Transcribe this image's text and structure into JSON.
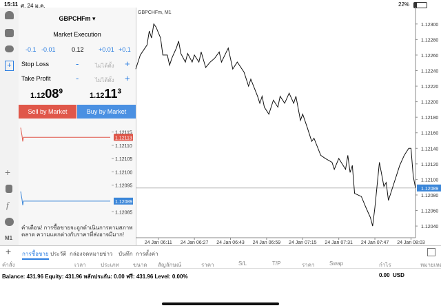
{
  "status_bar": {
    "time": "15:11",
    "date": "ศ. 24 ม.ค.",
    "battery": "22%"
  },
  "sidebar": {
    "left_menu_label": "M1"
  },
  "order_panel": {
    "symbol": "GBPCHFm",
    "execution": "Market Execution",
    "volume_controls": [
      "-0.1",
      "-0.01",
      "0.12",
      "+0.01",
      "+0.1"
    ],
    "stop_loss": {
      "label": "Stop Loss",
      "minus": "-",
      "value": "ไม่ได้ตั้ง",
      "plus": "+"
    },
    "take_profit": {
      "label": "Take Profit",
      "minus": "-",
      "value": "ไม่ได้ตั้ง",
      "plus": "+"
    },
    "bid": {
      "prefix": "1.12",
      "big": "08",
      "pip": "9"
    },
    "ask": {
      "prefix": "1.12",
      "big": "11",
      "pip": "3"
    },
    "sell_button": "Sell by Market",
    "buy_button": "Buy by Market",
    "warning": "คำเตือน! การซื้อขายจะถูกดำเนินการตามสภาพตลาด ความแตกต่างกับราคาที่ส่งอาจมีมาก!"
  },
  "mini_chart": {
    "ylim": [
      1.12083,
      1.12118
    ],
    "yticks": [
      {
        "value": 1.12115,
        "label": "1.12115"
      },
      {
        "value": 1.1211,
        "label": "1.12110"
      },
      {
        "value": 1.12105,
        "label": "1.12105"
      },
      {
        "value": 1.121,
        "label": "1.12100"
      },
      {
        "value": 1.12095,
        "label": "1.12095"
      },
      {
        "value": 1.12085,
        "label": "1.12085"
      }
    ],
    "ask": {
      "value": 1.12113,
      "label": "1.12113",
      "color": "#e0574a"
    },
    "bid": {
      "value": 1.12089,
      "label": "1.12089",
      "color": "#3b86d8"
    }
  },
  "chart": {
    "type": "line",
    "title": "GBPCHFm, M1",
    "color": "#111111",
    "x": [
      1,
      3,
      6,
      7,
      8,
      9,
      10,
      12,
      13,
      15,
      16,
      17,
      19,
      20,
      21,
      23,
      24,
      26,
      27,
      29,
      30,
      32,
      34,
      36,
      38,
      39,
      42,
      44,
      46,
      49,
      51,
      52,
      55,
      56,
      57,
      58,
      60,
      62,
      64,
      65,
      67,
      69,
      71,
      72,
      74,
      75,
      77,
      79,
      80,
      83,
      85,
      88,
      89,
      91,
      94,
      95,
      96,
      97,
      98,
      101,
      103,
      105,
      106,
      107,
      109,
      111,
      112,
      113,
      116,
      118,
      120,
      122,
      123,
      124,
      125
    ],
    "values": [
      1.12242,
      1.1226,
      1.12273,
      1.12291,
      1.12282,
      1.123,
      1.12296,
      1.12282,
      1.1226,
      1.1226,
      1.12247,
      1.12256,
      1.12269,
      1.12278,
      1.12262,
      1.12251,
      1.12262,
      1.12251,
      1.1226,
      1.12251,
      1.12264,
      1.12244,
      1.12251,
      1.12256,
      1.12264,
      1.12251,
      1.12269,
      1.12242,
      1.12251,
      1.12238,
      1.1222,
      1.12229,
      1.12207,
      1.12198,
      1.12207,
      1.12193,
      1.12184,
      1.12202,
      1.12193,
      1.12207,
      1.12198,
      1.12211,
      1.12198,
      1.12207,
      1.12176,
      1.12184,
      1.12167,
      1.12149,
      1.12153,
      1.12131,
      1.12127,
      1.12122,
      1.12113,
      1.12127,
      1.12113,
      1.12131,
      1.12109,
      1.12118,
      1.12082,
      1.12078,
      1.12064,
      1.12051,
      1.1204,
      1.12064,
      1.12122,
      1.12091,
      1.12096,
      1.12073,
      1.121,
      1.12118,
      1.12131,
      1.1214,
      1.1214,
      1.12104,
      1.12089
    ],
    "xlim": [
      1,
      125
    ],
    "ylim": [
      1.12025,
      1.12322
    ],
    "xticks": [
      {
        "value": 11,
        "label": "24 Jan 06:11"
      },
      {
        "value": 27,
        "label": "24 Jan 06:27"
      },
      {
        "value": 43,
        "label": "24 Jan 06:43"
      },
      {
        "value": 59,
        "label": "24 Jan 06:59"
      },
      {
        "value": 75,
        "label": "24 Jan 07:15"
      },
      {
        "value": 91,
        "label": "24 Jan 07:31"
      },
      {
        "value": 107,
        "label": "24 Jan 07:47"
      },
      {
        "value": 123,
        "label": "24 Jan 08:03"
      }
    ],
    "yticks": [
      {
        "value": 1.123,
        "label": "1.12300"
      },
      {
        "value": 1.1228,
        "label": "1.12280"
      },
      {
        "value": 1.1226,
        "label": "1.12260"
      },
      {
        "value": 1.1224,
        "label": "1.12240"
      },
      {
        "value": 1.1222,
        "label": "1.12220"
      },
      {
        "value": 1.122,
        "label": "1.12200"
      },
      {
        "value": 1.1218,
        "label": "1.12180"
      },
      {
        "value": 1.1216,
        "label": "1.12160"
      },
      {
        "value": 1.1214,
        "label": "1.12140"
      },
      {
        "value": 1.1212,
        "label": "1.12120"
      },
      {
        "value": 1.121,
        "label": "1.12100"
      },
      {
        "value": 1.1208,
        "label": "1.12080"
      },
      {
        "value": 1.1206,
        "label": "1.12060"
      },
      {
        "value": 1.1204,
        "label": "1.12040"
      }
    ],
    "current_price": {
      "value": 1.12089,
      "label": "1.12089",
      "color": "#3b86d8"
    }
  },
  "bottom": {
    "tabs": [
      "การซื้อขาย",
      "ประวัติ",
      "กล่องจดหมาย",
      "ข่าว",
      "บันทึก",
      "การตั้งค่า"
    ],
    "columns": [
      "คำสั่ง",
      "เวลา",
      "ประเภท",
      "ขนาด",
      "สัญลักษณ์",
      "ราคา",
      "S/L",
      "T/P",
      "ราคา",
      "Swap",
      "กำไร",
      "หมายเหตุ"
    ],
    "balance": "Balance: 431.96 Equity: 431.96 หลักประกัน: 0.00 ฟรี: 431.96 Level: 0.00%",
    "profit": "0.00",
    "currency": "USD"
  }
}
